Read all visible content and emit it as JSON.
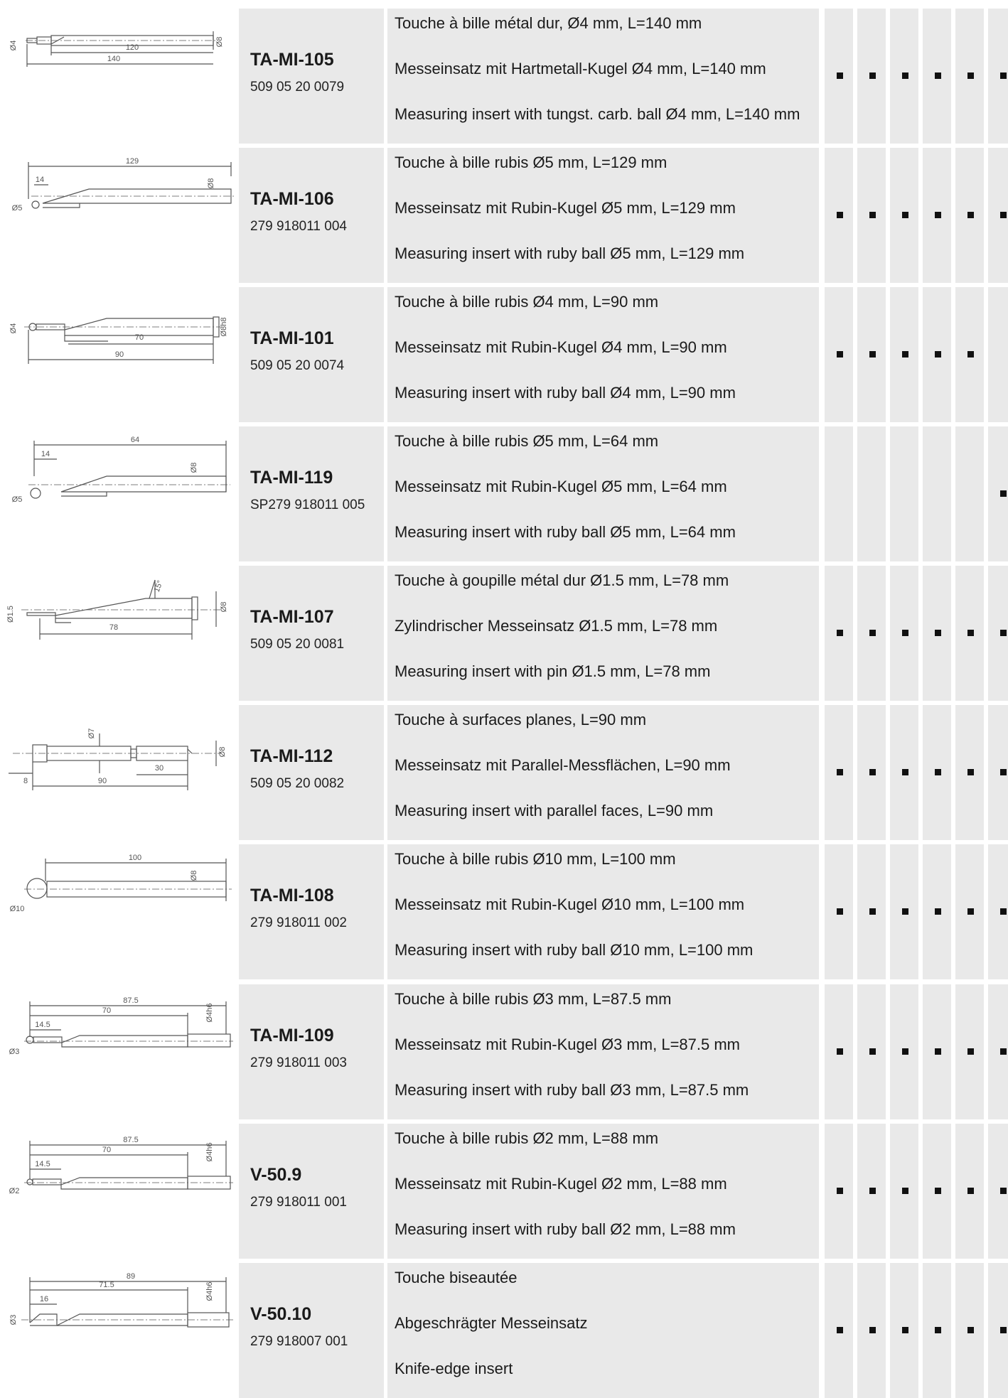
{
  "rows": [
    {
      "code": "TA-MI-105",
      "ref": "509 05 20 0079",
      "fr": "Touche à bille métal dur, Ø4 mm, L=140 mm",
      "de": "Messeinsatz mit Hartmetall-Kugel Ø4 mm, L=140 mm",
      "en": "Measuring insert with tungst. carb. ball Ø4 mm, L=140 mm",
      "marks": [
        true,
        true,
        true,
        true,
        true,
        true
      ],
      "dims": [
        "Ø4",
        "Ø8",
        "120",
        "140"
      ]
    },
    {
      "code": "TA-MI-106",
      "ref": "279 918011 004",
      "fr": "Touche à bille rubis Ø5 mm, L=129 mm",
      "de": "Messeinsatz mit Rubin-Kugel Ø5 mm, L=129 mm",
      "en": "Measuring insert with ruby ball Ø5 mm, L=129 mm",
      "marks": [
        true,
        true,
        true,
        true,
        true,
        true
      ],
      "dims": [
        "129",
        "14",
        "Ø8",
        "Ø5"
      ]
    },
    {
      "code": "TA-MI-101",
      "ref": "509 05 20 0074",
      "fr": "Touche à bille rubis Ø4 mm, L=90 mm",
      "de": "Messeinsatz mit Rubin-Kugel Ø4 mm, L=90 mm",
      "en": "Measuring insert with ruby ball Ø4 mm, L=90 mm",
      "marks": [
        true,
        true,
        true,
        true,
        true,
        false
      ],
      "dims": [
        "Ø4",
        "Ø8h8",
        "70",
        "90"
      ]
    },
    {
      "code": "TA-MI-119",
      "ref": "SP279 918011 005",
      "fr": "Touche à bille rubis Ø5 mm, L=64 mm",
      "de": "Messeinsatz mit Rubin-Kugel Ø5 mm, L=64 mm",
      "en": "Measuring insert with ruby ball Ø5 mm, L=64 mm",
      "marks": [
        false,
        false,
        false,
        false,
        false,
        true
      ],
      "dims": [
        "64",
        "14",
        "Ø8",
        "Ø5"
      ]
    },
    {
      "code": "TA-MI-107",
      "ref": "509 05 20 0081",
      "fr": "Touche à goupille métal dur Ø1.5 mm, L=78 mm",
      "de": "Zylindrischer Messeinsatz Ø1.5 mm, L=78 mm",
      "en": "Measuring insert with pin Ø1.5 mm, L=78 mm",
      "marks": [
        true,
        true,
        true,
        true,
        true,
        true
      ],
      "dims": [
        "Ø1.5",
        "15°",
        "Ø8",
        "78"
      ]
    },
    {
      "code": "TA-MI-112",
      "ref": "509 05 20 0082",
      "fr": "Touche à surfaces planes, L=90 mm",
      "de": "Messeinsatz mit Parallel-Messflächen, L=90 mm",
      "en": "Measuring insert with parallel faces, L=90 mm",
      "marks": [
        true,
        true,
        true,
        true,
        true,
        true
      ],
      "dims": [
        "Ø7",
        "30",
        "Ø8",
        "8",
        "90"
      ]
    },
    {
      "code": "TA-MI-108",
      "ref": "279 918011 002",
      "fr": "Touche à bille rubis Ø10 mm, L=100 mm",
      "de": "Messeinsatz mit Rubin-Kugel Ø10 mm, L=100 mm",
      "en": "Measuring insert with ruby ball Ø10 mm, L=100 mm",
      "marks": [
        true,
        true,
        true,
        true,
        true,
        true
      ],
      "dims": [
        "100",
        "Ø8",
        "Ø10"
      ]
    },
    {
      "code": "TA-MI-109",
      "ref": "279 918011 003",
      "fr": "Touche à bille rubis Ø3 mm, L=87.5 mm",
      "de": "Messeinsatz mit Rubin-Kugel Ø3 mm, L=87.5 mm",
      "en": "Measuring insert with ruby ball Ø3 mm, L=87.5 mm",
      "marks": [
        true,
        true,
        true,
        true,
        true,
        true
      ],
      "dims": [
        "87.5",
        "70",
        "14.5",
        "Ø4h6",
        "Ø3"
      ]
    },
    {
      "code": "V-50.9",
      "ref": "279 918011 001",
      "fr": "Touche à bille rubis Ø2 mm, L=88 mm",
      "de": "Messeinsatz mit Rubin-Kugel Ø2 mm, L=88 mm",
      "en": "Measuring insert with ruby ball Ø2 mm, L=88 mm",
      "marks": [
        true,
        true,
        true,
        true,
        true,
        true
      ],
      "dims": [
        "87.5",
        "70",
        "14.5",
        "Ø4h6",
        "Ø2"
      ]
    },
    {
      "code": "V-50.10",
      "ref": "279 918007 001",
      "fr": "Touche biseautée",
      "de": "Abgeschrägter Messeinsatz",
      "en": "Knife-edge insert",
      "marks": [
        true,
        true,
        true,
        true,
        true,
        true
      ],
      "dims": [
        "89",
        "71.5",
        "16",
        "Ø3",
        "Ø4h6"
      ]
    }
  ]
}
